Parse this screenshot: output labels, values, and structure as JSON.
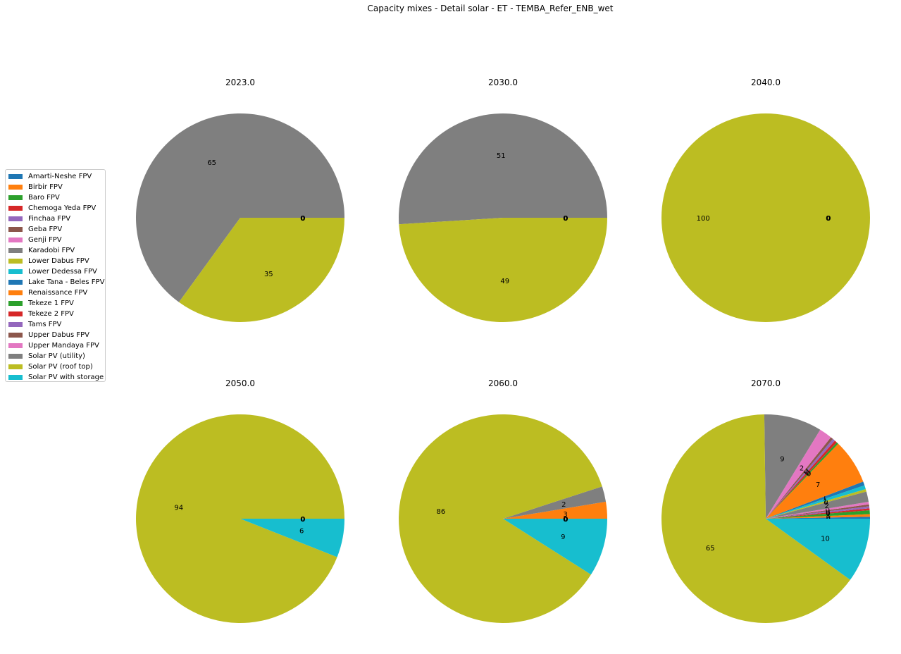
{
  "title": "Capacity mixes - Detail solar - ET - TEMBA_Refer_ENB_wet",
  "legend": [
    {
      "label": "Amarti-Neshe FPV",
      "color": "#1f77b4"
    },
    {
      "label": "Birbir FPV",
      "color": "#ff7f0e"
    },
    {
      "label": "Baro FPV",
      "color": "#2ca02c"
    },
    {
      "label": "Chemoga Yeda FPV",
      "color": "#d62728"
    },
    {
      "label": "Finchaa FPV",
      "color": "#9467bd"
    },
    {
      "label": "Geba FPV",
      "color": "#8c564b"
    },
    {
      "label": "Genji FPV",
      "color": "#e377c2"
    },
    {
      "label": "Karadobi FPV",
      "color": "#7f7f7f"
    },
    {
      "label": "Lower Dabus FPV",
      "color": "#bcbd22"
    },
    {
      "label": "Lower Dedessa FPV",
      "color": "#17becf"
    },
    {
      "label": "Lake Tana - Beles FPV",
      "color": "#1f77b4"
    },
    {
      "label": "Renaissance FPV",
      "color": "#ff7f0e"
    },
    {
      "label": "Tekeze 1 FPV",
      "color": "#2ca02c"
    },
    {
      "label": "Tekeze 2 FPV",
      "color": "#d62728"
    },
    {
      "label": "Tams FPV",
      "color": "#9467bd"
    },
    {
      "label": "Upper Dabus FPV",
      "color": "#8c564b"
    },
    {
      "label": "Upper Mandaya FPV",
      "color": "#e377c2"
    },
    {
      "label": "Solar PV (utility)",
      "color": "#7f7f7f"
    },
    {
      "label": "Solar PV (roof top)",
      "color": "#bcbd22"
    },
    {
      "label": "Solar PV with storage",
      "color": "#17becf"
    }
  ],
  "chart_data": [
    {
      "type": "pie",
      "title": "2023.0",
      "slices": [
        {
          "label": "Solar PV (utility)",
          "color": "#7f7f7f",
          "value": 65,
          "text": "65"
        },
        {
          "label": "Solar PV (roof top)",
          "color": "#bcbd22",
          "value": 35,
          "text": "35"
        }
      ],
      "zero_labels": [
        "0",
        "0",
        "0"
      ]
    },
    {
      "type": "pie",
      "title": "2030.0",
      "slices": [
        {
          "label": "Solar PV (utility)",
          "color": "#7f7f7f",
          "value": 51,
          "text": "51"
        },
        {
          "label": "Solar PV (roof top)",
          "color": "#bcbd22",
          "value": 49,
          "text": "49"
        }
      ],
      "zero_labels": [
        "0",
        "0",
        "0"
      ]
    },
    {
      "type": "pie",
      "title": "2040.0",
      "slices": [
        {
          "label": "Solar PV (roof top)",
          "color": "#bcbd22",
          "value": 100,
          "text": "100"
        }
      ],
      "zero_labels": [
        "0",
        "0",
        "0"
      ]
    },
    {
      "type": "pie",
      "title": "2050.0",
      "slices": [
        {
          "label": "Solar PV (roof top)",
          "color": "#bcbd22",
          "value": 94,
          "text": "94"
        },
        {
          "label": "Solar PV with storage",
          "color": "#17becf",
          "value": 6,
          "text": "6"
        }
      ],
      "zero_labels": [
        "0",
        "0"
      ]
    },
    {
      "type": "pie",
      "title": "2060.0",
      "slices": [
        {
          "label": "Renaissance FPV",
          "color": "#ff7f0e",
          "value": 2.6,
          "text": "3"
        },
        {
          "label": "Solar PV (utility)",
          "color": "#7f7f7f",
          "value": 2.4,
          "text": "2"
        },
        {
          "label": "Solar PV (roof top)",
          "color": "#bcbd22",
          "value": 86,
          "text": "86"
        },
        {
          "label": "Solar PV with storage",
          "color": "#17becf",
          "value": 9,
          "text": "9"
        }
      ],
      "zero_labels": [
        "0",
        "0",
        "0",
        "0"
      ]
    },
    {
      "type": "pie",
      "title": "2070.0",
      "slices": [
        {
          "label": "Amarti-Neshe FPV",
          "color": "#1f77b4",
          "value": 0.3,
          "text": "0"
        },
        {
          "label": "Birbir FPV",
          "color": "#ff7f0e",
          "value": 0.4,
          "text": "0"
        },
        {
          "label": "Baro FPV",
          "color": "#2ca02c",
          "value": 0.6,
          "text": "1"
        },
        {
          "label": "Chemoga Yeda FPV",
          "color": "#d62728",
          "value": 0.3,
          "text": "0"
        },
        {
          "label": "Finchaa FPV",
          "color": "#9467bd",
          "value": 0.3,
          "text": "0"
        },
        {
          "label": "Geba FPV",
          "color": "#8c564b",
          "value": 0.3,
          "text": "0"
        },
        {
          "label": "Genji FPV",
          "color": "#e377c2",
          "value": 0.4,
          "text": "0"
        },
        {
          "label": "Karadobi FPV",
          "color": "#7f7f7f",
          "value": 1.6,
          "text": "2"
        },
        {
          "label": "Lower Dabus FPV",
          "color": "#bcbd22",
          "value": 0.4,
          "text": "0"
        },
        {
          "label": "Lower Dedessa FPV",
          "color": "#17becf",
          "value": 0.6,
          "text": "1"
        },
        {
          "label": "Lake Tana - Beles FPV",
          "color": "#1f77b4",
          "value": 0.6,
          "text": "1"
        },
        {
          "label": "Renaissance FPV",
          "color": "#ff7f0e",
          "value": 7,
          "text": "7"
        },
        {
          "label": "Tekeze 1 FPV",
          "color": "#2ca02c",
          "value": 0.3,
          "text": "0"
        },
        {
          "label": "Tekeze 2 FPV",
          "color": "#d62728",
          "value": 0.4,
          "text": "0"
        },
        {
          "label": "Tams FPV",
          "color": "#9467bd",
          "value": 0.4,
          "text": "0"
        },
        {
          "label": "Upper Dabus FPV",
          "color": "#8c564b",
          "value": 0.4,
          "text": "0"
        },
        {
          "label": "Upper Mandaya FPV",
          "color": "#e377c2",
          "value": 2,
          "text": "2"
        },
        {
          "label": "Solar PV (utility)",
          "color": "#7f7f7f",
          "value": 9,
          "text": "9"
        },
        {
          "label": "Solar PV (roof top)",
          "color": "#bcbd22",
          "value": 65,
          "text": "65"
        },
        {
          "label": "Solar PV with storage",
          "color": "#17becf",
          "value": 10,
          "text": "10"
        }
      ],
      "zero_labels": []
    }
  ]
}
